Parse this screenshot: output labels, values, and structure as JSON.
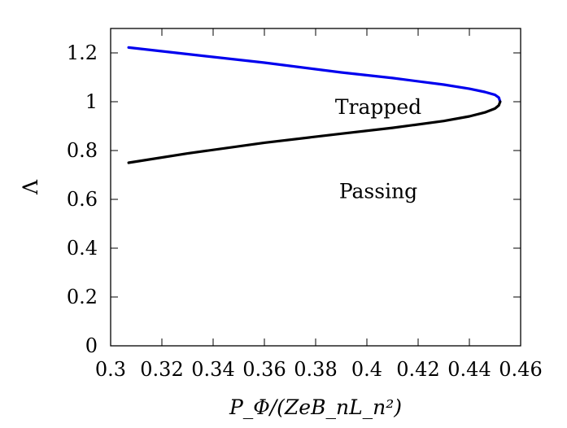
{
  "chart_data": {
    "type": "line",
    "title": "",
    "xlabel": "P_Φ/(ZeB_nL_n²)",
    "ylabel": "Λ",
    "xlim": [
      0.3,
      0.46
    ],
    "ylim": [
      0,
      1.3
    ],
    "xticks": [
      0.3,
      0.32,
      0.34,
      0.36,
      0.38,
      0.4,
      0.42,
      0.44,
      0.46
    ],
    "xtick_labels": [
      "0.3",
      "0.32",
      "0.34",
      "0.36",
      "0.38",
      "0.4",
      "0.42",
      "0.44",
      "0.46"
    ],
    "yticks": [
      0,
      0.2,
      0.4,
      0.6,
      0.8,
      1.0,
      1.2
    ],
    "ytick_labels": [
      "0",
      "0.2",
      "0.4",
      "0.6",
      "0.8",
      "1",
      "1.2"
    ],
    "grid": false,
    "legend": "none",
    "series": [
      {
        "color": "#0000ee",
        "x": [
          0.307,
          0.33,
          0.36,
          0.39,
          0.41,
          0.43,
          0.44,
          0.446,
          0.45,
          0.4515,
          0.452
        ],
        "y": [
          1.222,
          1.195,
          1.16,
          1.12,
          1.097,
          1.07,
          1.053,
          1.04,
          1.028,
          1.017,
          1.0
        ]
      },
      {
        "color": "#000000",
        "x": [
          0.307,
          0.33,
          0.36,
          0.39,
          0.41,
          0.43,
          0.44,
          0.446,
          0.45,
          0.4515,
          0.452
        ],
        "y": [
          0.75,
          0.788,
          0.832,
          0.869,
          0.893,
          0.921,
          0.94,
          0.956,
          0.972,
          0.985,
          1.0
        ]
      }
    ],
    "annotations": [
      {
        "text": "Trapped",
        "x": 0.4,
        "y": 0.98
      },
      {
        "text": "Passing",
        "x": 0.4,
        "y": 0.635
      }
    ]
  }
}
